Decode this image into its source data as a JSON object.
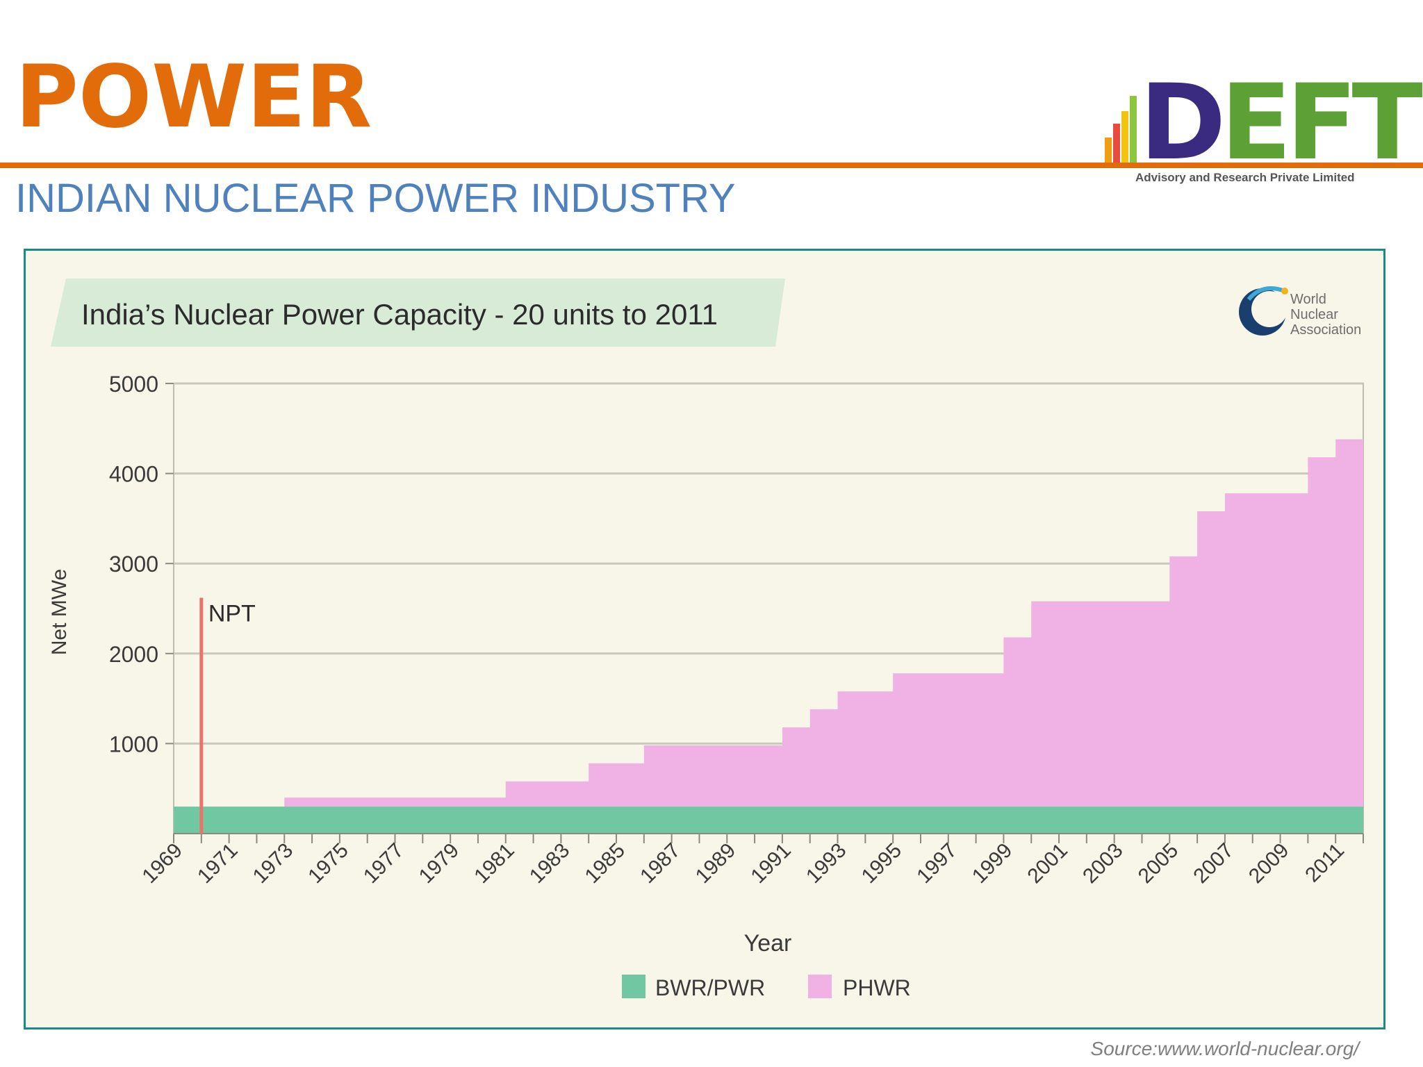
{
  "slide": {
    "title": "POWER",
    "subtitle": "INDIAN NUCLEAR POWER INDUSTRY",
    "source": "Source:www.world-nuclear.org/",
    "logo": {
      "text_d": "D",
      "text_eft": "EFT",
      "tagline": "Advisory and Research Private Limited"
    }
  },
  "colors": {
    "accent": "#E36C0A",
    "subtitle": "#4F81BD",
    "frame": "#1D8A8A",
    "bwr": "#72C7A3",
    "phwr": "#F0B2E4",
    "npt": "#E8746B",
    "title_band": "#D8EBD6"
  },
  "chart_data": {
    "type": "area",
    "title": "India’s Nuclear Power Capacity - 20 units to 2011",
    "xlabel": "Year",
    "ylabel": "Net MWe",
    "xlim": [
      1969,
      2012
    ],
    "ylim": [
      0,
      5000
    ],
    "y_ticks": [
      1000,
      2000,
      3000,
      4000,
      5000
    ],
    "x_tick_labels": [
      "1969",
      "1971",
      "1973",
      "1975",
      "1977",
      "1979",
      "1981",
      "1983",
      "1985",
      "1987",
      "1989",
      "1991",
      "1993",
      "1995",
      "1997",
      "1999",
      "2001",
      "2003",
      "2005",
      "2007",
      "2009",
      "2011"
    ],
    "grid": true,
    "stacked": true,
    "step": true,
    "legend_position": "bottom-center",
    "x": [
      1969,
      1970,
      1971,
      1972,
      1973,
      1974,
      1975,
      1976,
      1977,
      1978,
      1979,
      1980,
      1981,
      1982,
      1983,
      1984,
      1985,
      1986,
      1987,
      1988,
      1989,
      1990,
      1991,
      1992,
      1993,
      1994,
      1995,
      1996,
      1997,
      1998,
      1999,
      2000,
      2001,
      2002,
      2003,
      2004,
      2005,
      2006,
      2007,
      2008,
      2009,
      2010,
      2011
    ],
    "series": [
      {
        "name": "BWR/PWR",
        "values": [
          300,
          300,
          300,
          300,
          300,
          300,
          300,
          300,
          300,
          300,
          300,
          300,
          300,
          300,
          300,
          300,
          300,
          300,
          300,
          300,
          300,
          300,
          300,
          300,
          300,
          300,
          300,
          300,
          300,
          300,
          300,
          300,
          300,
          300,
          300,
          300,
          300,
          300,
          300,
          300,
          300,
          300,
          300
        ]
      },
      {
        "name": "PHWR",
        "values": [
          0,
          0,
          0,
          0,
          100,
          100,
          100,
          100,
          100,
          100,
          100,
          100,
          280,
          280,
          280,
          480,
          480,
          680,
          680,
          680,
          680,
          680,
          880,
          1080,
          1280,
          1280,
          1480,
          1480,
          1480,
          1480,
          1880,
          2280,
          2280,
          2280,
          2280,
          2280,
          2780,
          3280,
          3480,
          3480,
          3480,
          3880,
          4080
        ]
      }
    ],
    "annotations": [
      {
        "label": "NPT",
        "x": 1970
      }
    ],
    "watermark_logo": {
      "line1": "World",
      "line2": "Nuclear",
      "line3": "Association"
    }
  }
}
